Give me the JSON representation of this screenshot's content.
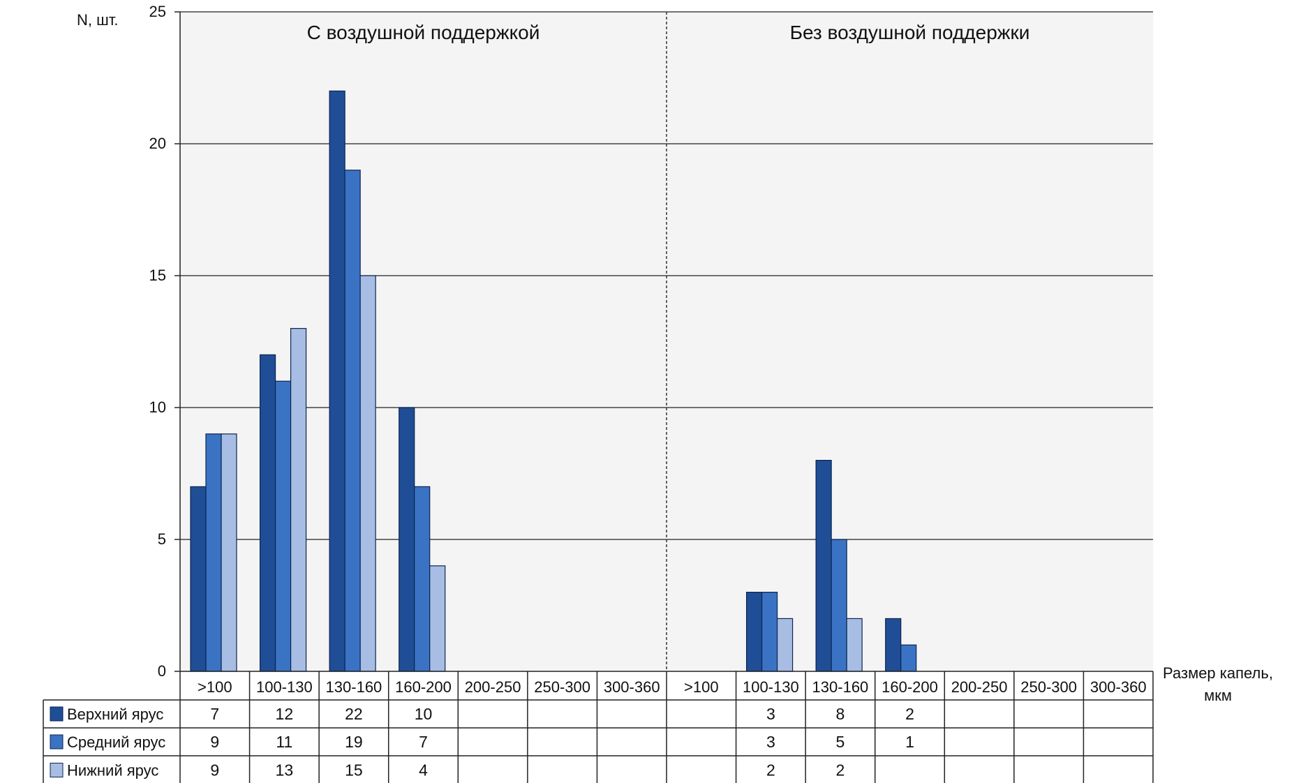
{
  "chart_data": {
    "type": "bar",
    "ylabel": "N, шт.",
    "xlabel": "Размер капель, мкм",
    "ylim": [
      0,
      25
    ],
    "yticks": [
      "0",
      "5",
      "10",
      "15",
      "20",
      "25"
    ],
    "grid": true,
    "legend": "table-left",
    "groups": [
      {
        "title": "С воздушной поддержкой",
        "categories": [
          ">100",
          "100-130",
          "130-160",
          "160-200",
          "200-250",
          "250-300",
          "300-360"
        ],
        "series": [
          {
            "name": "Верхний ярус",
            "values": [
              7,
              12,
              22,
              10,
              null,
              null,
              null
            ]
          },
          {
            "name": "Средний ярус",
            "values": [
              9,
              11,
              19,
              7,
              null,
              null,
              null
            ]
          },
          {
            "name": "Нижний ярус",
            "values": [
              9,
              13,
              15,
              4,
              null,
              null,
              null
            ]
          }
        ]
      },
      {
        "title": "Без воздушной поддержки",
        "categories": [
          ">100",
          "100-130",
          "130-160",
          "160-200",
          "200-250",
          "250-300",
          "300-360"
        ],
        "series": [
          {
            "name": "Верхний ярус",
            "values": [
              null,
              3,
              8,
              2,
              null,
              null,
              null
            ]
          },
          {
            "name": "Средний ярус",
            "values": [
              null,
              3,
              5,
              1,
              null,
              null,
              null
            ]
          },
          {
            "name": "Нижний ярус",
            "values": [
              null,
              2,
              2,
              null,
              null,
              null,
              null
            ]
          }
        ]
      }
    ],
    "colors": {
      "Верхний ярус": "#1f4e96",
      "Средний ярус": "#3a73c4",
      "Нижний ярус": "#a7bde3",
      "plot_bg": "#f4f4f4",
      "grid": "#222222"
    }
  }
}
